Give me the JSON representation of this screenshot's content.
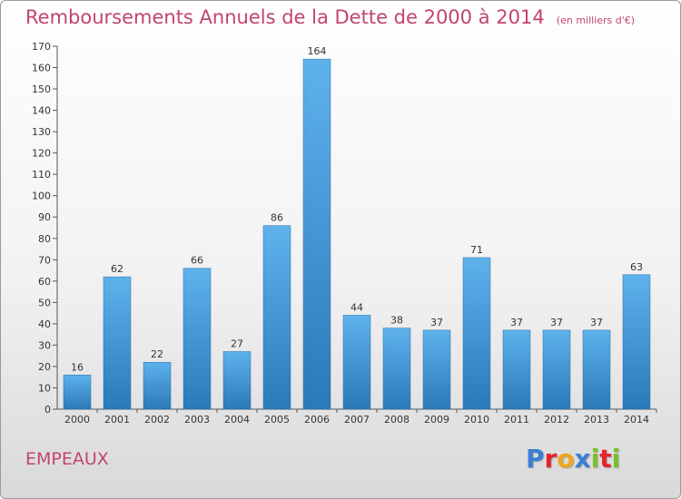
{
  "title": "Remboursements Annuels de la Dette de 2000 à 2014",
  "unit": "(en milliers d'€)",
  "commune": "EMPEAUX",
  "brand": {
    "letters": [
      "P",
      "r",
      "o",
      "x",
      "i",
      "t",
      "i"
    ],
    "colors": [
      "#3a7fd4",
      "#e2262a",
      "#f0a51a",
      "#3a7fd4",
      "#7bbf2a",
      "#e2262a",
      "#7bbf2a"
    ]
  },
  "chart_data": {
    "type": "bar",
    "categories": [
      "2000",
      "2001",
      "2002",
      "2003",
      "2004",
      "2005",
      "2006",
      "2007",
      "2008",
      "2009",
      "2010",
      "2011",
      "2012",
      "2013",
      "2014"
    ],
    "values": [
      16,
      62,
      22,
      66,
      27,
      86,
      164,
      44,
      38,
      37,
      71,
      37,
      37,
      37,
      63
    ],
    "ylim": [
      0,
      170
    ],
    "yticks": [
      0,
      10,
      20,
      30,
      40,
      50,
      60,
      70,
      80,
      90,
      100,
      110,
      120,
      130,
      140,
      150,
      160,
      170
    ],
    "grid": false,
    "bar_color_top": "#5eb2ec",
    "bar_color_bottom": "#2a79b8",
    "text_color": "#c2456b"
  }
}
